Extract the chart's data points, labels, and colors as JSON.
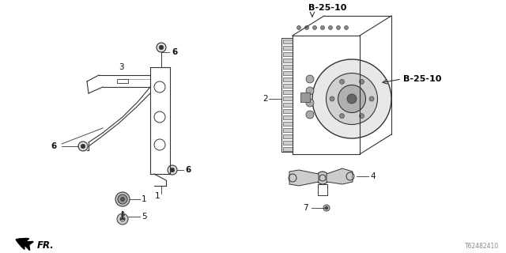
{
  "bg_color": "#ffffff",
  "diagram_id": "T62482410",
  "line_color": "#333333",
  "text_color": "#111111",
  "bold_label_color": "#000000",
  "labels": {
    "b25_top": "B-25-10",
    "b25_right": "B-25-10",
    "fr": "FR.",
    "part1": "1",
    "part2": "2",
    "part3": "3",
    "part4": "4",
    "part5": "5",
    "part6a": "6",
    "part6b": "6",
    "part6c": "6",
    "part7": "7"
  }
}
